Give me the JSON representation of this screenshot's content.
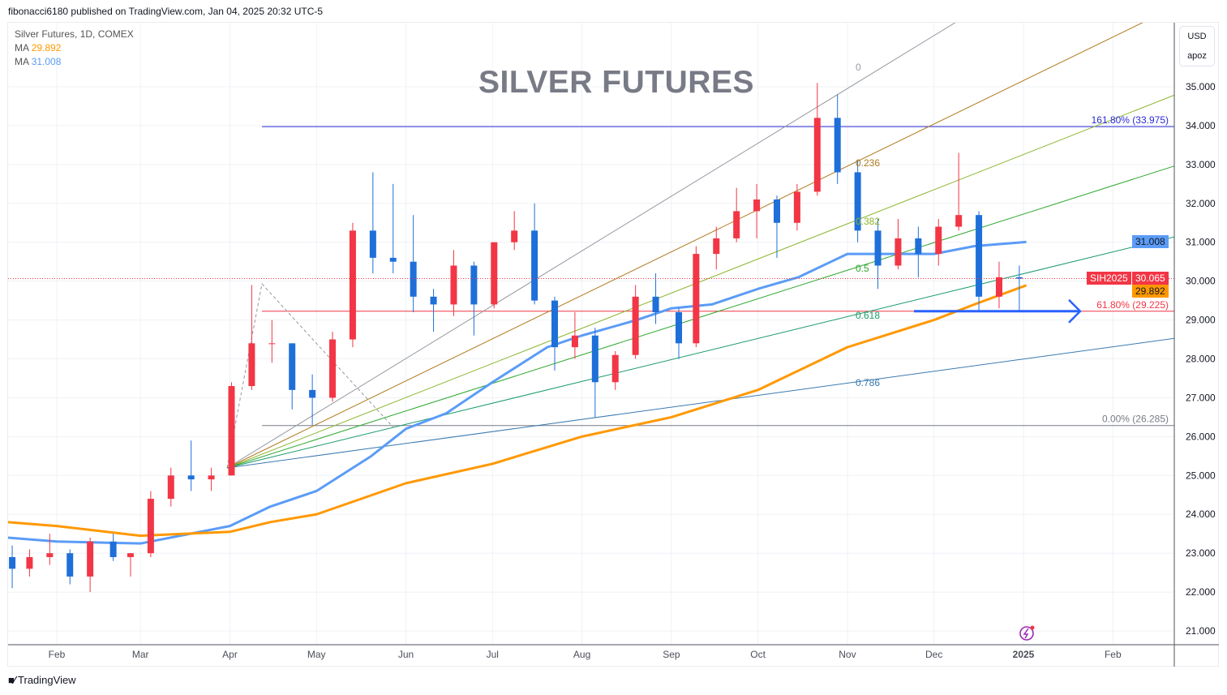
{
  "header": {
    "published": "fibonacci6180 published on TradingView.com, Jan 04, 2025 20:32 UTC-5"
  },
  "legend": {
    "symbol": "Silver Futures, 1D, COMEX",
    "ma1_label": "MA",
    "ma1_value": "29.892",
    "ma2_label": "MA",
    "ma2_value": "31.008"
  },
  "annotation_title": "SILVER FUTURES",
  "axis_unit": {
    "currency": "USD",
    "unit": "apoz"
  },
  "price_tags": {
    "ma_blue": "31.008",
    "symbol": "SIH2025",
    "last": "30.065",
    "ma_orange": "29.892"
  },
  "fib_retracement": [
    {
      "label": "161.80% (33.975)",
      "price": 33.975,
      "color": "#2a2ad6"
    },
    {
      "label": "61.80% (29.225)",
      "price": 29.225,
      "color": "#f23645"
    },
    {
      "label": "0.00% (26.285)",
      "price": 26.285,
      "color": "#787b86"
    }
  ],
  "fib_fan_labels": [
    "0",
    "0.236",
    "0.382",
    "0.5",
    "0.618",
    "0.786"
  ],
  "footer": {
    "brand": "TradingView",
    "logo": "TV"
  },
  "colors": {
    "up": "#f23645",
    "down": "#1e6fd9",
    "ma_fast": "#5b9cf6",
    "ma_slow": "#ff9800"
  },
  "chart_data": {
    "type": "candlestick",
    "title": "SILVER FUTURES",
    "ylim": [
      20.7,
      36.6
    ],
    "yticks": [
      "21.000",
      "22.000",
      "23.000",
      "24.000",
      "25.000",
      "26.000",
      "27.000",
      "28.000",
      "29.000",
      "30.000",
      "31.000",
      "32.000",
      "33.000",
      "34.000",
      "35.000"
    ],
    "xticks": [
      {
        "label": "Feb",
        "date": "2024-02-01"
      },
      {
        "label": "Mar",
        "date": "2024-03-01"
      },
      {
        "label": "Apr",
        "date": "2024-04-01"
      },
      {
        "label": "May",
        "date": "2024-05-01"
      },
      {
        "label": "Jun",
        "date": "2024-06-01"
      },
      {
        "label": "Jul",
        "date": "2024-07-01"
      },
      {
        "label": "Aug",
        "date": "2024-08-01"
      },
      {
        "label": "Sep",
        "date": "2024-09-01"
      },
      {
        "label": "Oct",
        "date": "2024-10-01"
      },
      {
        "label": "Nov",
        "date": "2024-11-01"
      },
      {
        "label": "Dec",
        "date": "2024-12-01"
      },
      {
        "label": "2025",
        "date": "2025-01-01"
      },
      {
        "label": "Feb",
        "date": "2025-02-01"
      }
    ],
    "ohlc": [
      [
        "2024-01-16",
        22.9,
        23.2,
        22.1,
        22.6
      ],
      [
        "2024-01-22",
        22.6,
        23.1,
        22.4,
        22.9
      ],
      [
        "2024-01-29",
        22.9,
        23.5,
        22.7,
        23.0
      ],
      [
        "2024-02-05",
        23.0,
        23.1,
        22.2,
        22.4
      ],
      [
        "2024-02-12",
        22.4,
        23.4,
        22.0,
        23.3
      ],
      [
        "2024-02-20",
        23.3,
        23.5,
        22.8,
        22.9
      ],
      [
        "2024-02-26",
        22.9,
        23.0,
        22.4,
        23.0
      ],
      [
        "2024-03-04",
        23.0,
        24.6,
        22.9,
        24.4
      ],
      [
        "2024-03-11",
        24.4,
        25.2,
        24.2,
        25.0
      ],
      [
        "2024-03-18",
        25.0,
        25.9,
        24.6,
        24.9
      ],
      [
        "2024-03-25",
        24.9,
        25.2,
        24.6,
        25.0
      ],
      [
        "2024-04-01",
        25.0,
        27.4,
        25.0,
        27.3
      ],
      [
        "2024-04-08",
        27.3,
        29.9,
        27.2,
        28.4
      ],
      [
        "2024-04-15",
        28.4,
        29.0,
        27.9,
        28.4
      ],
      [
        "2024-04-22",
        28.4,
        28.4,
        26.7,
        27.2
      ],
      [
        "2024-04-29",
        27.2,
        27.6,
        26.3,
        27.0
      ],
      [
        "2024-05-06",
        27.0,
        28.7,
        26.9,
        28.5
      ],
      [
        "2024-05-13",
        28.5,
        31.5,
        28.3,
        31.3
      ],
      [
        "2024-05-20",
        31.3,
        32.8,
        30.2,
        30.6
      ],
      [
        "2024-05-27",
        30.6,
        32.5,
        30.2,
        30.5
      ],
      [
        "2024-06-03",
        30.5,
        31.7,
        29.2,
        29.6
      ],
      [
        "2024-06-10",
        29.6,
        29.8,
        28.7,
        29.4
      ],
      [
        "2024-06-17",
        29.4,
        30.8,
        29.1,
        30.4
      ],
      [
        "2024-06-24",
        30.4,
        30.5,
        28.6,
        29.4
      ],
      [
        "2024-07-01",
        29.4,
        31.0,
        29.3,
        31.0
      ],
      [
        "2024-07-08",
        31.0,
        31.8,
        30.8,
        31.3
      ],
      [
        "2024-07-15",
        31.3,
        32.0,
        29.4,
        29.5
      ],
      [
        "2024-07-22",
        29.5,
        29.6,
        27.7,
        28.3
      ],
      [
        "2024-07-29",
        28.3,
        29.2,
        28.0,
        28.6
      ],
      [
        "2024-08-05",
        28.6,
        28.8,
        26.5,
        27.4
      ],
      [
        "2024-08-12",
        27.4,
        28.2,
        27.2,
        28.1
      ],
      [
        "2024-08-19",
        28.1,
        29.9,
        28.0,
        29.6
      ],
      [
        "2024-08-26",
        29.6,
        30.2,
        28.9,
        29.2
      ],
      [
        "2024-09-03",
        29.2,
        29.3,
        28.0,
        28.4
      ],
      [
        "2024-09-09",
        28.4,
        30.9,
        28.3,
        30.7
      ],
      [
        "2024-09-16",
        30.7,
        31.4,
        30.3,
        31.1
      ],
      [
        "2024-09-23",
        31.1,
        32.4,
        31.0,
        31.8
      ],
      [
        "2024-09-30",
        31.8,
        32.5,
        31.1,
        32.1
      ],
      [
        "2024-10-07",
        32.1,
        32.2,
        30.6,
        31.5
      ],
      [
        "2024-10-14",
        31.5,
        32.5,
        31.3,
        32.3
      ],
      [
        "2024-10-21",
        32.3,
        35.1,
        32.2,
        34.2
      ],
      [
        "2024-10-28",
        34.2,
        34.8,
        32.5,
        32.8
      ],
      [
        "2024-11-04",
        32.8,
        33.1,
        31.0,
        31.3
      ],
      [
        "2024-11-11",
        31.3,
        31.6,
        29.8,
        30.4
      ],
      [
        "2024-11-18",
        30.4,
        31.6,
        30.3,
        31.1
      ],
      [
        "2024-11-25",
        31.1,
        31.4,
        30.1,
        30.7
      ],
      [
        "2024-12-02",
        30.7,
        31.6,
        30.4,
        31.4
      ],
      [
        "2024-12-09",
        31.4,
        33.3,
        31.3,
        31.7
      ],
      [
        "2024-12-16",
        31.7,
        31.8,
        29.2,
        29.6
      ],
      [
        "2024-12-23",
        29.6,
        30.5,
        29.3,
        30.1
      ],
      [
        "2024-12-30",
        30.1,
        30.4,
        29.2,
        30.065
      ]
    ],
    "series": [
      {
        "name": "MA",
        "color": "#5b9cf6",
        "points": [
          [
            "2024-01-15",
            23.4
          ],
          [
            "2024-02-01",
            23.3
          ],
          [
            "2024-03-01",
            23.25
          ],
          [
            "2024-04-01",
            23.7
          ],
          [
            "2024-04-15",
            24.2
          ],
          [
            "2024-05-01",
            24.6
          ],
          [
            "2024-05-20",
            25.5
          ],
          [
            "2024-06-01",
            26.2
          ],
          [
            "2024-06-15",
            26.6
          ],
          [
            "2024-07-01",
            27.4
          ],
          [
            "2024-07-20",
            28.3
          ],
          [
            "2024-08-01",
            28.6
          ],
          [
            "2024-08-20",
            29.0
          ],
          [
            "2024-09-01",
            29.3
          ],
          [
            "2024-09-15",
            29.4
          ],
          [
            "2024-10-01",
            29.8
          ],
          [
            "2024-10-15",
            30.1
          ],
          [
            "2024-11-01",
            30.7
          ],
          [
            "2024-11-15",
            30.7
          ],
          [
            "2024-12-01",
            30.7
          ],
          [
            "2024-12-15",
            30.9
          ],
          [
            "2025-01-02",
            31.008
          ]
        ]
      },
      {
        "name": "MA",
        "color": "#ff9800",
        "points": [
          [
            "2024-01-15",
            23.8
          ],
          [
            "2024-02-01",
            23.7
          ],
          [
            "2024-03-01",
            23.45
          ],
          [
            "2024-04-01",
            23.55
          ],
          [
            "2024-04-15",
            23.8
          ],
          [
            "2024-05-01",
            24.0
          ],
          [
            "2024-06-01",
            24.8
          ],
          [
            "2024-07-01",
            25.3
          ],
          [
            "2024-08-01",
            26.0
          ],
          [
            "2024-09-01",
            26.5
          ],
          [
            "2024-10-01",
            27.2
          ],
          [
            "2024-11-01",
            28.3
          ],
          [
            "2024-12-01",
            29.0
          ],
          [
            "2024-12-15",
            29.4
          ],
          [
            "2025-01-02",
            29.892
          ]
        ]
      }
    ],
    "last_price": 30.065,
    "grid": true
  }
}
